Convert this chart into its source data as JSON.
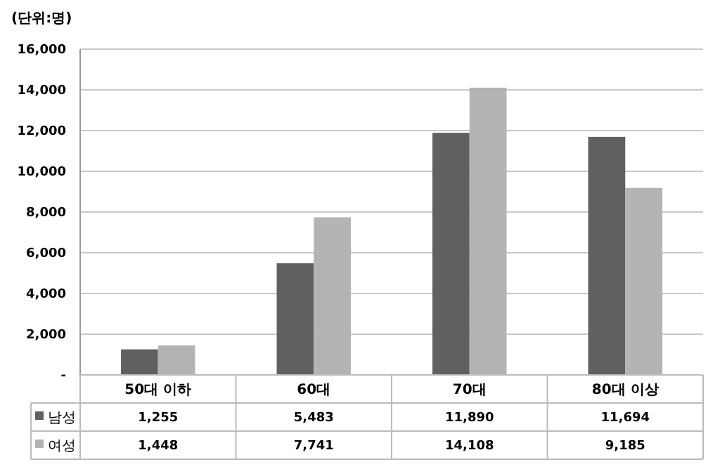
{
  "chart_data": {
    "type": "bar",
    "ylabel": "(단위:명)",
    "categories": [
      "50대 이하",
      "60대",
      "70대",
      "80대 이상"
    ],
    "series": [
      {
        "name": "남성",
        "color": "#606060",
        "values": [
          1255,
          5483,
          11890,
          11694
        ],
        "value_labels": [
          "1,255",
          "5,483",
          "11,890",
          "11,694"
        ]
      },
      {
        "name": "여성",
        "color": "#b4b4b4",
        "values": [
          1448,
          7741,
          14108,
          9185
        ],
        "value_labels": [
          "1,448",
          "7,741",
          "14,108",
          "9,185"
        ]
      }
    ],
    "ylim": [
      0,
      16000
    ],
    "yticks": [
      {
        "value": 0,
        "label": "-"
      },
      {
        "value": 2000,
        "label": "2,000"
      },
      {
        "value": 4000,
        "label": "4,000"
      },
      {
        "value": 6000,
        "label": "6,000"
      },
      {
        "value": 8000,
        "label": "8,000"
      },
      {
        "value": 10000,
        "label": "10,000"
      },
      {
        "value": 12000,
        "label": "12,000"
      },
      {
        "value": 14000,
        "label": "14,000"
      },
      {
        "value": 16000,
        "label": "16,000"
      }
    ],
    "grid": "y",
    "legend": "bottom"
  }
}
